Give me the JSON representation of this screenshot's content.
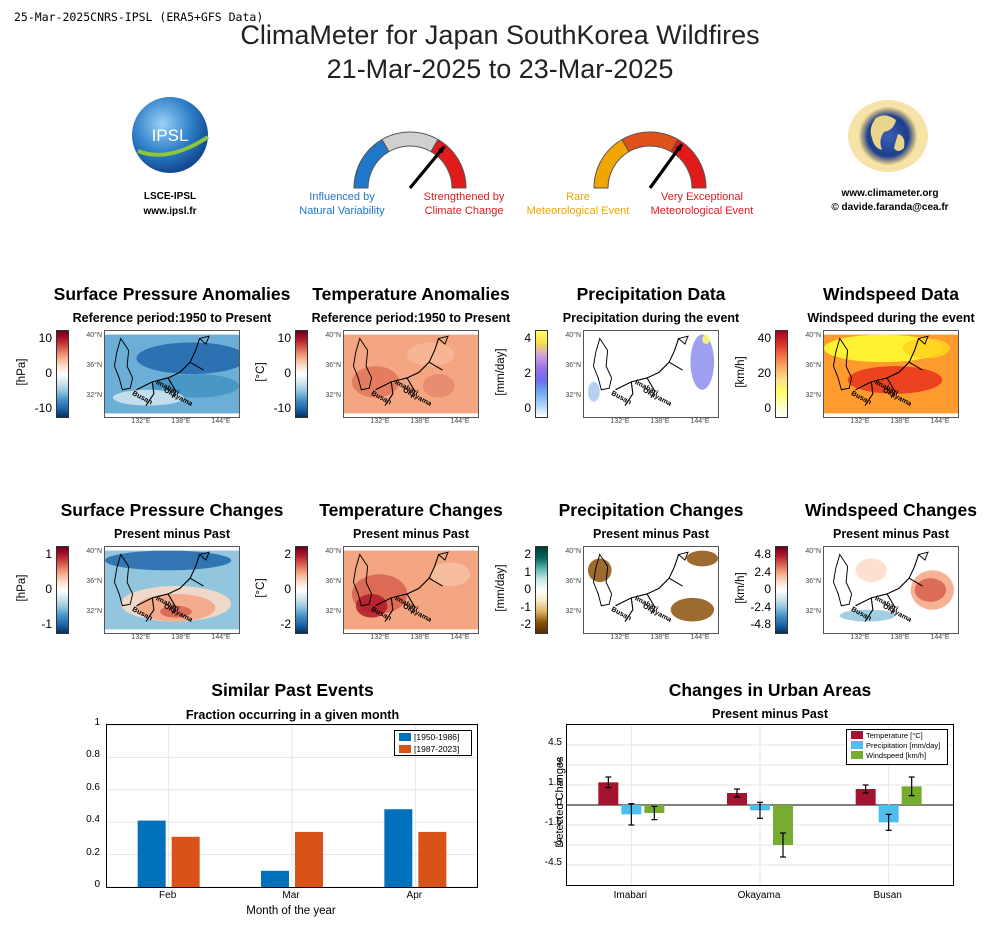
{
  "header": {
    "meta": "25-Mar-2025CNRS-IPSL (ERA5+GFS Data)",
    "title_line1": "ClimaMeter for Japan SouthKorea Wildfires",
    "title_line2": "21-Mar-2025 to 23-Mar-2025"
  },
  "logos": {
    "ipsl_badge": "IPSL",
    "ipsl_name": "LSCE-IPSL",
    "ipsl_url": "www.ipsl.fr",
    "cm_url": "www.climameter.org",
    "cm_email": "© davide.faranda@cea.fr"
  },
  "gauges": {
    "left": {
      "low_label_1": "Influenced by",
      "low_label_2": "Natural Variability",
      "high_label_1": "Strengthened by",
      "high_label_2": "Climate Change",
      "needle_position": 0.72
    },
    "right": {
      "low_label_1": "Rare",
      "low_label_2": "Meteorological Event",
      "high_label_1": "Very Exceptional",
      "high_label_2": "Meteorological Event",
      "needle_position": 0.7
    },
    "colors": {
      "blue": "#1f77c9",
      "grey": "#d0d0d0",
      "red": "#e31a1c",
      "yellow": "#f0a500",
      "orange": "#e0521a"
    }
  },
  "map_labels": {
    "lat": [
      "40°N",
      "36°N",
      "32°N"
    ],
    "lon": [
      "132°E",
      "138°E",
      "144°E"
    ],
    "cities": [
      "Imabari",
      "Okayama",
      "Busan"
    ]
  },
  "panels_row1": [
    {
      "title": "Surface Pressure Anomalies",
      "subtitle": "Reference period:1950 to Present",
      "unit": "[hPa]",
      "ticks": [
        "10",
        "0",
        "-10"
      ],
      "scheme": "div",
      "field": "pressure_anom"
    },
    {
      "title": "Temperature Anomalies",
      "subtitle": "Reference period:1950 to Present",
      "unit": "[°C]",
      "ticks": [
        "10",
        "0",
        "-10"
      ],
      "scheme": "div",
      "field": "temp_anom"
    },
    {
      "title": "Precipitation Data",
      "subtitle": "Precipitation during the event",
      "unit": "[mm/day]",
      "ticks": [
        "4",
        "2",
        "0"
      ],
      "scheme": "precip",
      "field": "precip"
    },
    {
      "title": "Windspeed Data",
      "subtitle": "Windspeed during the event",
      "unit": "[km/h]",
      "ticks": [
        "40",
        "20",
        "0"
      ],
      "scheme": "wind",
      "field": "wind"
    }
  ],
  "panels_row2": [
    {
      "title": "Surface Pressure Changes",
      "subtitle": "Present minus Past",
      "unit": "[hPa]",
      "ticks": [
        "1",
        "0",
        "-1"
      ],
      "scheme": "div",
      "field": "pressure_chg"
    },
    {
      "title": "Temperature Changes",
      "subtitle": "Present minus Past",
      "unit": "[°C]",
      "ticks": [
        "2",
        "0",
        "-2"
      ],
      "scheme": "div",
      "field": "temp_chg"
    },
    {
      "title": "Precipitation Changes",
      "subtitle": "Present minus Past",
      "unit": "[mm/day]",
      "ticks": [
        "2",
        "1",
        "0",
        "-1",
        "-2"
      ],
      "scheme": "brbg",
      "field": "precip_chg"
    },
    {
      "title": "Windspeed Changes",
      "subtitle": "Present minus Past",
      "unit": "[km/h]",
      "ticks": [
        "4.8",
        "2.4",
        "0",
        "-2.4",
        "-4.8"
      ],
      "scheme": "div",
      "field": "wind_chg"
    }
  ],
  "chart_data": [
    {
      "type": "bar",
      "title": "Similar Past Events",
      "subtitle": "Fraction occurring in a given month",
      "categories": [
        "Feb",
        "Mar",
        "Apr"
      ],
      "series": [
        {
          "name": "[1950-1986]",
          "color": "#0072bd",
          "values": [
            0.41,
            0.1,
            0.48
          ]
        },
        {
          "name": "[1987-2023]",
          "color": "#d95319",
          "values": [
            0.31,
            0.34,
            0.34
          ]
        }
      ],
      "xlabel": "Month of the year",
      "ylabel": "",
      "ylim": [
        0,
        1
      ],
      "yticks": [
        "0",
        "0.2",
        "0.4",
        "0.6",
        "0.8",
        "1"
      ],
      "legend": "top-right",
      "grid": true
    },
    {
      "type": "bar",
      "title": "Changes in Urban Areas",
      "subtitle": "Present minus Past",
      "categories": [
        "Imabari",
        "Okayama",
        "Busan"
      ],
      "series": [
        {
          "name": "Temperature [°C]",
          "color": "#a2142f",
          "values": [
            1.7,
            0.9,
            1.2
          ],
          "err": [
            0.4,
            0.3,
            0.3
          ]
        },
        {
          "name": "Precipitation [mm/day]",
          "color": "#4dbeee",
          "values": [
            -0.7,
            -0.4,
            -1.3
          ],
          "err": [
            0.8,
            0.6,
            0.6
          ]
        },
        {
          "name": "Windspeed [km/h]",
          "color": "#77ac30",
          "values": [
            -0.6,
            -3.0,
            1.4
          ],
          "err": [
            0.5,
            0.9,
            0.7
          ]
        }
      ],
      "xlabel": "",
      "ylabel": "Detected Changes",
      "ylim": [
        -6,
        6
      ],
      "yticks": [
        "4.5",
        "3",
        "1.5",
        "0",
        "-1.5",
        "-3",
        "-4.5"
      ],
      "legend": "top-right",
      "grid": true
    }
  ]
}
